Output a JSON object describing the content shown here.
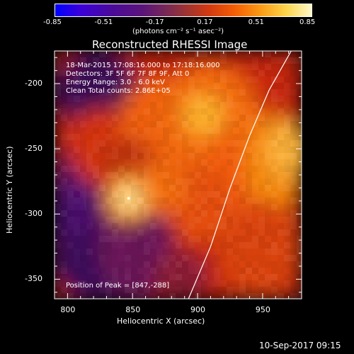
{
  "colorbar": {
    "ticks": [
      "-0.85",
      "-0.51",
      "-0.17",
      "0.17",
      "0.51",
      "0.85"
    ],
    "units": "(photons cm⁻² s⁻¹ asec⁻²)",
    "colors": [
      "#0000ff",
      "#4a0a9a",
      "#7a2a52",
      "#d23a10",
      "#fb9a15",
      "#fff9c8"
    ]
  },
  "chart_data": {
    "type": "heatmap",
    "title": "Reconstructed RHESSI Image",
    "xlabel": "Heliocentric X (arcsec)",
    "ylabel": "Heliocentric Y (arcsec)",
    "xlim": [
      790,
      980
    ],
    "ylim": [
      -365,
      -175
    ],
    "x_ticks": [
      800,
      850,
      900,
      950
    ],
    "y_ticks": [
      -200,
      -250,
      -300,
      -350
    ],
    "color_range": [
      -0.85,
      0.85
    ],
    "peak": {
      "x": 847,
      "y": -288
    },
    "limb_curve": [
      [
        893,
        -365
      ],
      [
        910,
        -325
      ],
      [
        925,
        -280
      ],
      [
        940,
        -240
      ],
      [
        955,
        -205
      ],
      [
        972,
        -175
      ]
    ],
    "annotations": [
      "18-Mar-2015 17:08:16.000 to 17:18:16.000",
      "Detectors: 3F 5F 6F 7F 8F 9F, Att 0",
      "Energy Range: 3.0 - 6.0 keV",
      "Clean    Total counts: 2.86E+05"
    ],
    "peak_label": "Position of Peak = [847,-288]"
  },
  "timestamp": "10-Sep-2017 09:15"
}
